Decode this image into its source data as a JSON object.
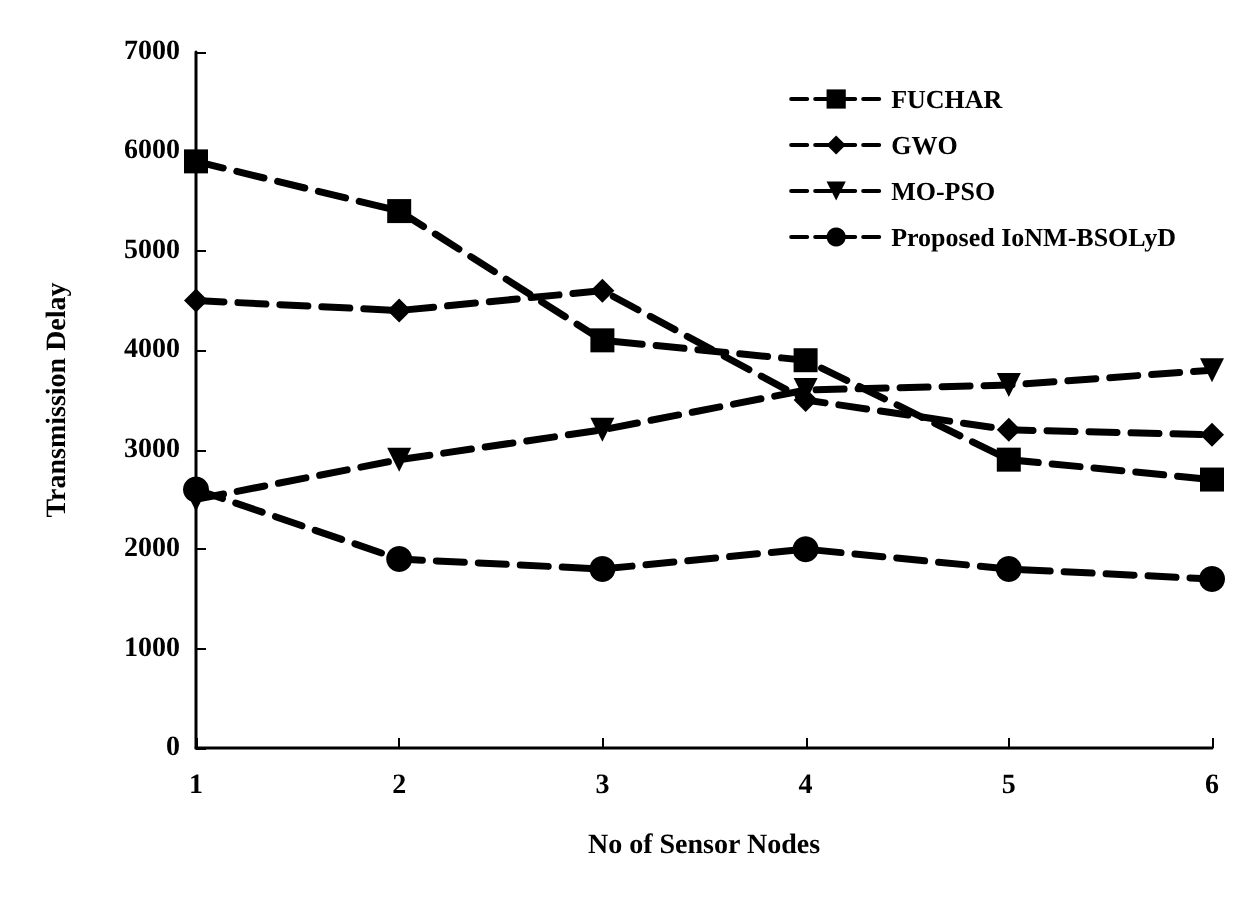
{
  "chart_data": {
    "type": "line",
    "xlabel": "No of Sensor Nodes",
    "ylabel": "Transmission Delay",
    "x": [
      1,
      2,
      3,
      4,
      5,
      6
    ],
    "xlim": [
      1,
      6
    ],
    "xticks": [
      1,
      2,
      3,
      4,
      5,
      6
    ],
    "ylim": [
      0,
      7000
    ],
    "yticks": [
      0,
      1000,
      2000,
      3000,
      4000,
      5000,
      6000,
      7000
    ],
    "grid": false,
    "legend": "top right",
    "line_style": "dashed",
    "series": [
      {
        "name": "FUCHAR",
        "color": "#000000",
        "marker": "square",
        "values": [
          5900,
          5400,
          4100,
          3900,
          2900,
          2700
        ]
      },
      {
        "name": "GWO",
        "color": "#000000",
        "marker": "diamond",
        "values": [
          4500,
          4400,
          4600,
          3500,
          3200,
          3150
        ]
      },
      {
        "name": "MO-PSO",
        "color": "#000000",
        "marker": "triangle",
        "values": [
          2500,
          2900,
          3200,
          3600,
          3650,
          3800
        ]
      },
      {
        "name": "Proposed IoNM-BSOLyD",
        "color": "#000000",
        "marker": "circle",
        "values": [
          2600,
          1900,
          1800,
          2000,
          1800,
          1700
        ]
      }
    ]
  }
}
